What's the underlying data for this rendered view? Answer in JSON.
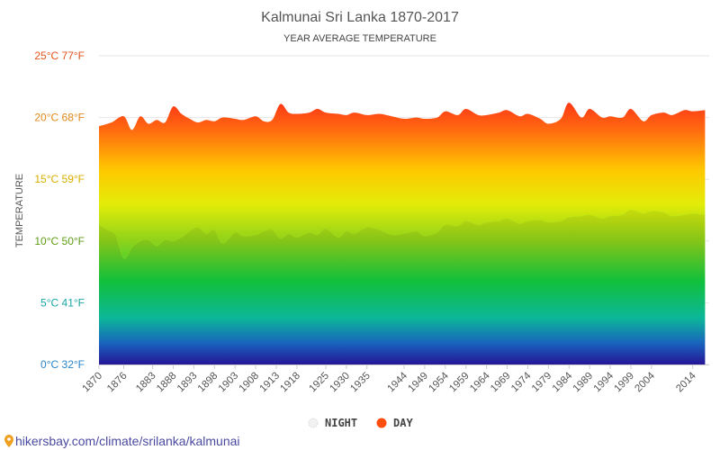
{
  "chart_data": {
    "type": "area",
    "title": "Kalmunai Sri Lanka 1870-2017",
    "subtitle": "YEAR AVERAGE TEMPERATURE",
    "ylabel": "TEMPERATURE",
    "ylim": [
      0,
      25
    ],
    "yticks": [
      {
        "value": 25,
        "label": "25°C 77°F",
        "color": "#e2531c"
      },
      {
        "value": 20,
        "label": "20°C 68°F",
        "color": "#e2891c"
      },
      {
        "value": 15,
        "label": "15°C 59°F",
        "color": "#d9b000"
      },
      {
        "value": 10,
        "label": "10°C 50°F",
        "color": "#5f9c17"
      },
      {
        "value": 5,
        "label": "5°C 41°F",
        "color": "#1aa6a6"
      },
      {
        "value": 0,
        "label": "0°C 32°F",
        "color": "#2a84c8"
      }
    ],
    "xlim": [
      1870,
      2018
    ],
    "xticks": [
      1870,
      1876,
      1883,
      1888,
      1893,
      1898,
      1903,
      1908,
      1913,
      1918,
      1925,
      1930,
      1935,
      1944,
      1949,
      1954,
      1959,
      1964,
      1969,
      1974,
      1979,
      1984,
      1989,
      1994,
      1999,
      2004,
      2014
    ],
    "legend": [
      {
        "name": "NIGHT",
        "color": "#e8e8e8"
      },
      {
        "name": "DAY",
        "color": "#ff4d0d"
      }
    ],
    "legend_position": "bottom-center",
    "grid": true,
    "series": [
      {
        "name": "DAY",
        "x": [
          1870,
          1873,
          1876,
          1878,
          1880,
          1882,
          1884,
          1886,
          1888,
          1890,
          1892,
          1894,
          1896,
          1898,
          1900,
          1903,
          1905,
          1908,
          1910,
          1912,
          1914,
          1916,
          1918,
          1921,
          1923,
          1925,
          1928,
          1930,
          1932,
          1935,
          1938,
          1941,
          1944,
          1947,
          1949,
          1952,
          1954,
          1957,
          1959,
          1962,
          1964,
          1967,
          1969,
          1972,
          1974,
          1977,
          1979,
          1982,
          1984,
          1987,
          1989,
          1992,
          1994,
          1997,
          1999,
          2002,
          2004,
          2007,
          2009,
          2012,
          2014,
          2017
        ],
        "values": [
          19.3,
          19.6,
          20.1,
          19.0,
          20.1,
          19.5,
          19.8,
          19.6,
          20.9,
          20.3,
          19.9,
          19.6,
          19.8,
          19.7,
          20.0,
          19.9,
          19.8,
          20.1,
          19.7,
          19.8,
          21.1,
          20.4,
          20.3,
          20.4,
          20.7,
          20.4,
          20.3,
          20.2,
          20.4,
          20.2,
          20.3,
          20.1,
          19.9,
          20.0,
          19.9,
          20.0,
          20.5,
          20.2,
          20.7,
          20.2,
          20.2,
          20.4,
          20.6,
          20.1,
          20.3,
          19.9,
          19.5,
          19.9,
          21.2,
          20.0,
          20.7,
          20.0,
          20.1,
          20.0,
          20.7,
          19.7,
          20.2,
          20.4,
          20.2,
          20.6,
          20.5,
          20.6
        ]
      },
      {
        "name": "NIGHT",
        "x": [
          1870,
          1872,
          1874,
          1876,
          1878,
          1880,
          1882,
          1884,
          1886,
          1888,
          1890,
          1892,
          1894,
          1896,
          1898,
          1900,
          1903,
          1905,
          1908,
          1910,
          1912,
          1914,
          1916,
          1918,
          1921,
          1923,
          1925,
          1928,
          1930,
          1932,
          1935,
          1938,
          1941,
          1944,
          1947,
          1949,
          1952,
          1954,
          1957,
          1959,
          1962,
          1964,
          1967,
          1969,
          1972,
          1974,
          1977,
          1979,
          1982,
          1984,
          1987,
          1989,
          1992,
          1994,
          1997,
          1999,
          2002,
          2004,
          2007,
          2009,
          2012,
          2014,
          2017
        ],
        "values": [
          11.3,
          10.9,
          10.5,
          8.6,
          9.5,
          10.0,
          10.1,
          9.6,
          10.1,
          10.0,
          10.3,
          10.8,
          11.1,
          10.6,
          10.9,
          9.8,
          10.7,
          10.4,
          10.5,
          10.8,
          10.9,
          10.2,
          10.6,
          10.3,
          10.7,
          10.5,
          11.0,
          10.3,
          10.8,
          10.6,
          11.1,
          10.9,
          10.5,
          10.6,
          10.8,
          10.4,
          10.7,
          11.3,
          11.2,
          11.6,
          11.3,
          11.5,
          11.6,
          11.8,
          11.4,
          11.6,
          11.7,
          11.5,
          11.6,
          11.9,
          12.0,
          12.1,
          11.8,
          12.0,
          12.1,
          12.5,
          12.2,
          12.4,
          12.3,
          12.0,
          12.1,
          12.2,
          12.1
        ]
      }
    ]
  },
  "footer": {
    "credit": "hikersbay.com/climate/srilanka/kalmunai"
  }
}
